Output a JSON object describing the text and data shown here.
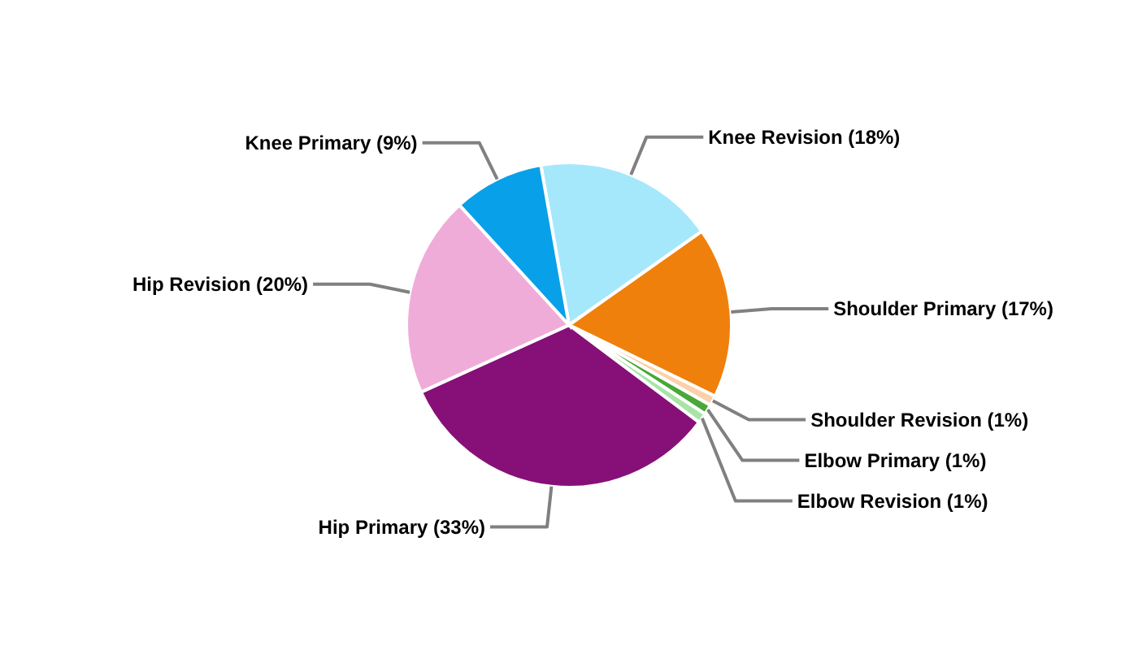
{
  "chart_data": {
    "type": "pie",
    "categories": [
      "Knee Revision (18%)",
      "Shoulder Primary (17%)",
      "Shoulder Revision (1%)",
      "Elbow Primary (1%)",
      "Elbow Revision (1%)",
      "Hip Primary (33%)",
      "Hip Revision (20%)",
      "Knee Primary (9%)"
    ],
    "values": [
      18,
      17,
      1,
      1,
      1,
      33,
      20,
      9
    ],
    "colors": [
      "#a6e8fb",
      "#f0800c",
      "#fcd0a8",
      "#48a838",
      "#a8e4a8",
      "#861078",
      "#f0acd8",
      "#08a0e8"
    ]
  }
}
